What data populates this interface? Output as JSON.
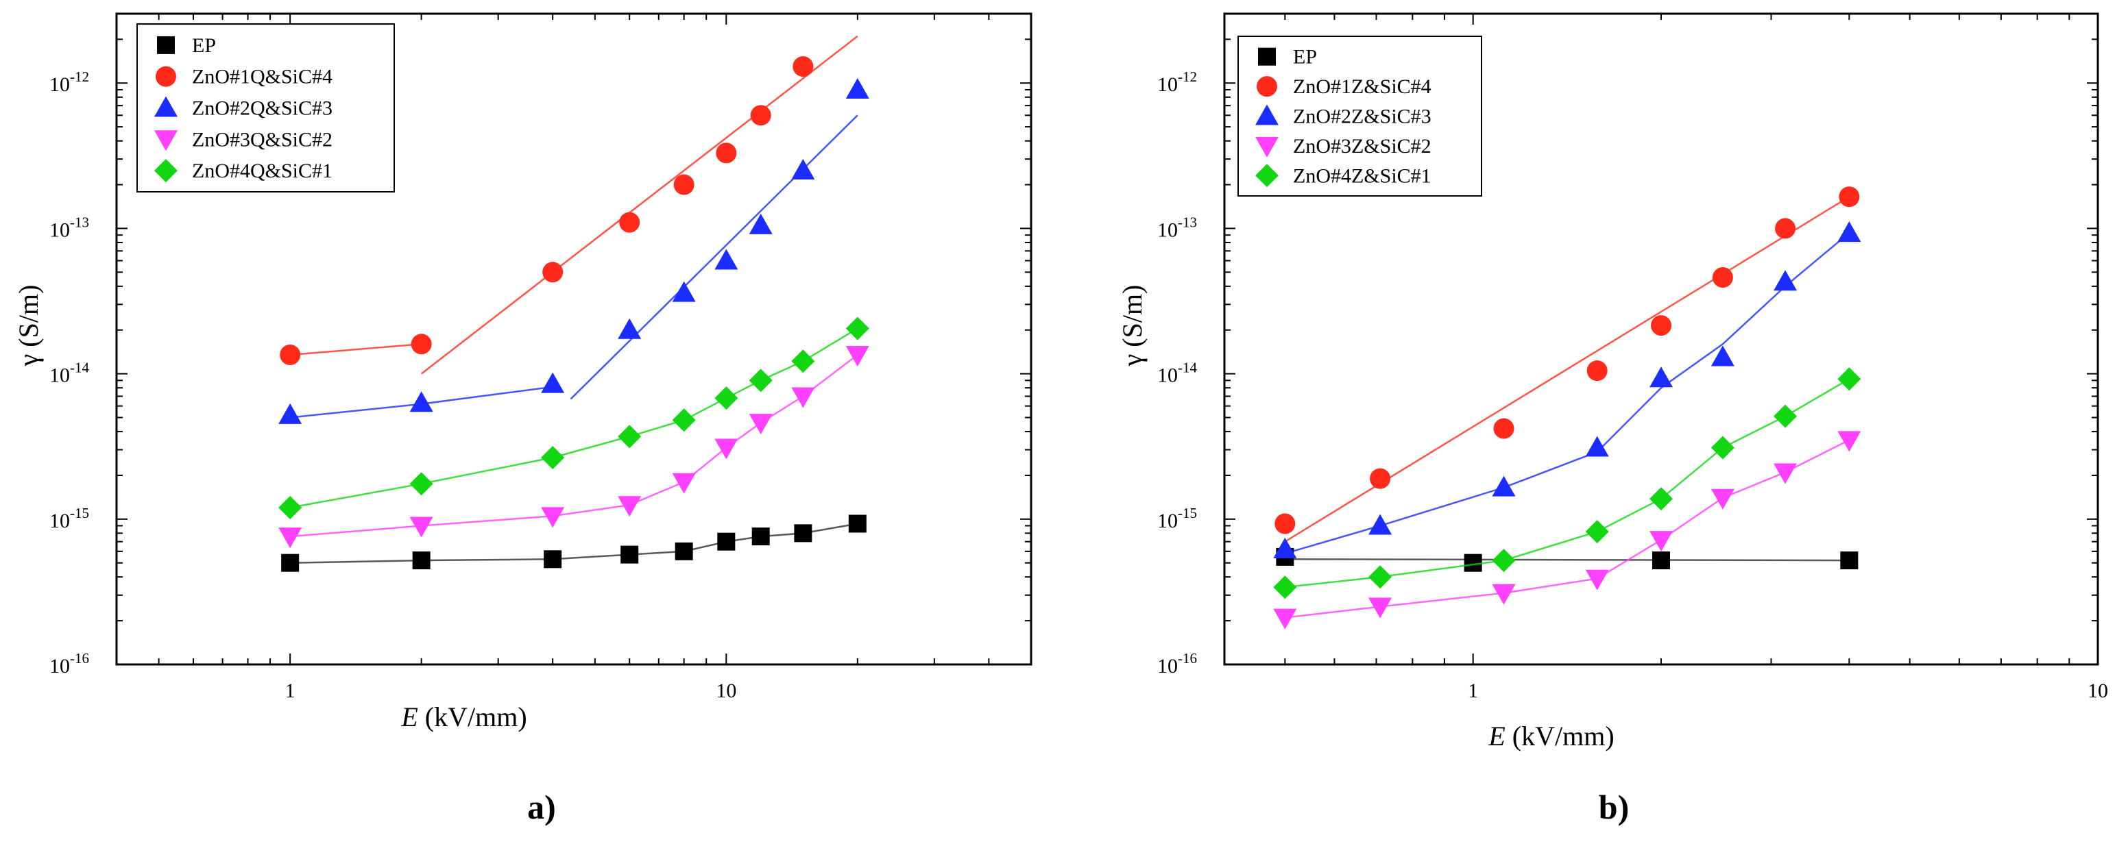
{
  "figure": {
    "panel_a_label": "a)",
    "panel_b_label": "b)"
  },
  "colors": {
    "EP": "#000000",
    "S1": "#ff2a1a",
    "S2": "#1a2cff",
    "S3": "#ff40ff",
    "S4": "#12d612"
  },
  "chart_data": [
    {
      "type": "scatter",
      "title": "",
      "xlabel_var": "E",
      "xlabel_unit": " (kV/mm)",
      "ylabel": "γ (S/m)",
      "xscale": "log",
      "yscale": "log",
      "xlim": [
        0.4,
        50
      ],
      "ylim": [
        1e-16,
        3e-12
      ],
      "xticks": [
        {
          "v": 1,
          "label": "1"
        },
        {
          "v": 10,
          "label": "10"
        }
      ],
      "yticks": [
        {
          "v": 1e-16,
          "base": "10",
          "exp": "-16"
        },
        {
          "v": 1e-15,
          "base": "10",
          "exp": "-15"
        },
        {
          "v": 1e-14,
          "base": "10",
          "exp": "-14"
        },
        {
          "v": 1e-13,
          "base": "10",
          "exp": "-13"
        },
        {
          "v": 1e-12,
          "base": "10",
          "exp": "-12"
        }
      ],
      "legend_position": "top-left",
      "series": [
        {
          "name": "EP",
          "marker": "square",
          "color": "#000000",
          "x": [
            1,
            2,
            4,
            6,
            8,
            10,
            12,
            15,
            20
          ],
          "y": [
            5e-16,
            5.2e-16,
            5.3e-16,
            5.7e-16,
            6e-16,
            7e-16,
            7.6e-16,
            8e-16,
            9.3e-16
          ],
          "fits": [
            {
              "x": [
                1,
                2,
                4,
                6,
                8,
                10,
                12,
                15,
                20
              ],
              "y": [
                5e-16,
                5.2e-16,
                5.3e-16,
                5.7e-16,
                6e-16,
                7e-16,
                7.6e-16,
                8e-16,
                9.3e-16
              ]
            }
          ]
        },
        {
          "name": "ZnO#1Q&SiC#4",
          "marker": "circle",
          "color": "#ff2a1a",
          "x": [
            1,
            2,
            4,
            6,
            8,
            10,
            12,
            15
          ],
          "y": [
            1.35e-14,
            1.6e-14,
            5e-14,
            1.1e-13,
            2e-13,
            3.3e-13,
            6e-13,
            1.3e-12
          ],
          "fits": [
            {
              "x": [
                1,
                2
              ],
              "y": [
                1.35e-14,
                1.6e-14
              ]
            },
            {
              "x": [
                2,
                20
              ],
              "y": [
                1e-14,
                2.1e-12
              ]
            }
          ]
        },
        {
          "name": "ZnO#2Q&SiC#3",
          "marker": "triangle-up",
          "color": "#1a2cff",
          "x": [
            1,
            2,
            4,
            6,
            8,
            10,
            12,
            15,
            20
          ],
          "y": [
            5.2e-15,
            6.3e-15,
            8.5e-15,
            2e-14,
            3.6e-14,
            6e-14,
            1.05e-13,
            2.5e-13,
            9e-13
          ],
          "fits": [
            {
              "x": [
                1,
                2,
                4.1
              ],
              "y": [
                5e-15,
                6.2e-15,
                8.2e-15
              ]
            },
            {
              "x": [
                4.4,
                20
              ],
              "y": [
                6.7e-15,
                6e-13
              ]
            }
          ]
        },
        {
          "name": "ZnO#3Q&SiC#2",
          "marker": "triangle-down",
          "color": "#ff40ff",
          "x": [
            1,
            2,
            4,
            6,
            8,
            10,
            12,
            15,
            20
          ],
          "y": [
            7.6e-16,
            9e-16,
            1.05e-15,
            1.25e-15,
            1.8e-15,
            3.1e-15,
            4.6e-15,
            7e-15,
            1.35e-14
          ],
          "fits": [
            {
              "x": [
                1,
                2,
                4,
                6,
                8,
                10,
                12,
                15,
                20
              ],
              "y": [
                7.6e-16,
                9e-16,
                1.05e-15,
                1.25e-15,
                1.8e-15,
                3.1e-15,
                4.6e-15,
                7e-15,
                1.35e-14
              ]
            }
          ]
        },
        {
          "name": "ZnO#4Q&SiC#1",
          "marker": "diamond",
          "color": "#12d612",
          "x": [
            1,
            2,
            4,
            6,
            8,
            10,
            12,
            15,
            20
          ],
          "y": [
            1.2e-15,
            1.75e-15,
            2.65e-15,
            3.7e-15,
            4.8e-15,
            6.8e-15,
            9e-15,
            1.22e-14,
            2.05e-14
          ],
          "fits": [
            {
              "x": [
                1,
                2,
                4,
                6,
                8,
                10,
                12,
                15,
                20
              ],
              "y": [
                1.2e-15,
                1.75e-15,
                2.65e-15,
                3.7e-15,
                4.8e-15,
                6.8e-15,
                9e-15,
                1.22e-14,
                2.05e-14
              ]
            }
          ]
        }
      ]
    },
    {
      "type": "scatter",
      "title": "",
      "xlabel_var": "E",
      "xlabel_unit": " (kV/mm)",
      "ylabel": "γ (S/m)",
      "xscale": "log",
      "yscale": "log",
      "xlim": [
        0.4,
        10
      ],
      "ylim": [
        1e-16,
        3e-12
      ],
      "xticks": [
        {
          "v": 1,
          "label": "1"
        },
        {
          "v": 10,
          "label": "10"
        }
      ],
      "yticks": [
        {
          "v": 1e-16,
          "base": "10",
          "exp": "-16"
        },
        {
          "v": 1e-15,
          "base": "10",
          "exp": "-15"
        },
        {
          "v": 1e-14,
          "base": "10",
          "exp": "-14"
        },
        {
          "v": 1e-13,
          "base": "10",
          "exp": "-13"
        },
        {
          "v": 1e-12,
          "base": "10",
          "exp": "-12"
        }
      ],
      "legend_position": "top-left",
      "series": [
        {
          "name": "EP",
          "marker": "square",
          "color": "#000000",
          "x": [
            0.5,
            1,
            2,
            4
          ],
          "y": [
            5.5e-16,
            5e-16,
            5.2e-16,
            5.2e-16
          ],
          "fits": [
            {
              "x": [
                0.5,
                4
              ],
              "y": [
                5.3e-16,
                5.2e-16
              ]
            }
          ]
        },
        {
          "name": "ZnO#1Z&SiC#4",
          "marker": "circle",
          "color": "#ff2a1a",
          "x": [
            0.5,
            0.71,
            1.12,
            1.58,
            2,
            2.51,
            3.16,
            4
          ],
          "y": [
            9.3e-16,
            1.9e-15,
            4.2e-15,
            1.05e-14,
            2.15e-14,
            4.6e-14,
            1e-13,
            1.65e-13
          ],
          "fits": [
            {
              "x": [
                0.5,
                4
              ],
              "y": [
                7e-16,
                1.65e-13
              ]
            }
          ]
        },
        {
          "name": "ZnO#2Z&SiC#3",
          "marker": "triangle-up",
          "color": "#1a2cff",
          "x": [
            0.5,
            0.71,
            1.12,
            1.58,
            2,
            2.51,
            3.16,
            4
          ],
          "y": [
            6.2e-16,
            9e-16,
            1.65e-15,
            3.1e-15,
            9.3e-15,
            1.3e-14,
            4.3e-14,
            9.3e-14
          ],
          "fits": [
            {
              "x": [
                0.5,
                0.71,
                1.12,
                1.58,
                2,
                2.51,
                3.16,
                4
              ],
              "y": [
                5.8e-16,
                9e-16,
                1.65e-15,
                2.9e-15,
                8e-15,
                1.6e-14,
                4e-14,
                9.3e-14
              ]
            }
          ]
        },
        {
          "name": "ZnO#3Z&SiC#2",
          "marker": "triangle-down",
          "color": "#ff40ff",
          "x": [
            0.5,
            0.71,
            1.12,
            1.58,
            2,
            2.51,
            3.16,
            4
          ],
          "y": [
            2.1e-16,
            2.5e-16,
            3.1e-16,
            3.9e-16,
            7.2e-16,
            1.4e-15,
            2.1e-15,
            3.5e-15
          ],
          "fits": [
            {
              "x": [
                0.5,
                0.71,
                1.12,
                1.58,
                2,
                2.51,
                3.16,
                4
              ],
              "y": [
                2.1e-16,
                2.5e-16,
                3.1e-16,
                3.9e-16,
                7.2e-16,
                1.4e-15,
                2.1e-15,
                3.5e-15
              ]
            }
          ]
        },
        {
          "name": "ZnO#4Z&SiC#1",
          "marker": "diamond",
          "color": "#12d612",
          "x": [
            0.5,
            0.71,
            1.12,
            1.58,
            2,
            2.51,
            3.16,
            4
          ],
          "y": [
            3.4e-16,
            4e-16,
            5.2e-16,
            8.2e-16,
            1.38e-15,
            3.1e-15,
            5.1e-15,
            9.2e-15
          ],
          "fits": [
            {
              "x": [
                0.5,
                0.71,
                1.12,
                1.58,
                2,
                2.51,
                3.16,
                4
              ],
              "y": [
                3.4e-16,
                4e-16,
                5.2e-16,
                8.2e-16,
                1.38e-15,
                3.1e-15,
                5.1e-15,
                9.2e-15
              ]
            }
          ]
        }
      ]
    }
  ]
}
